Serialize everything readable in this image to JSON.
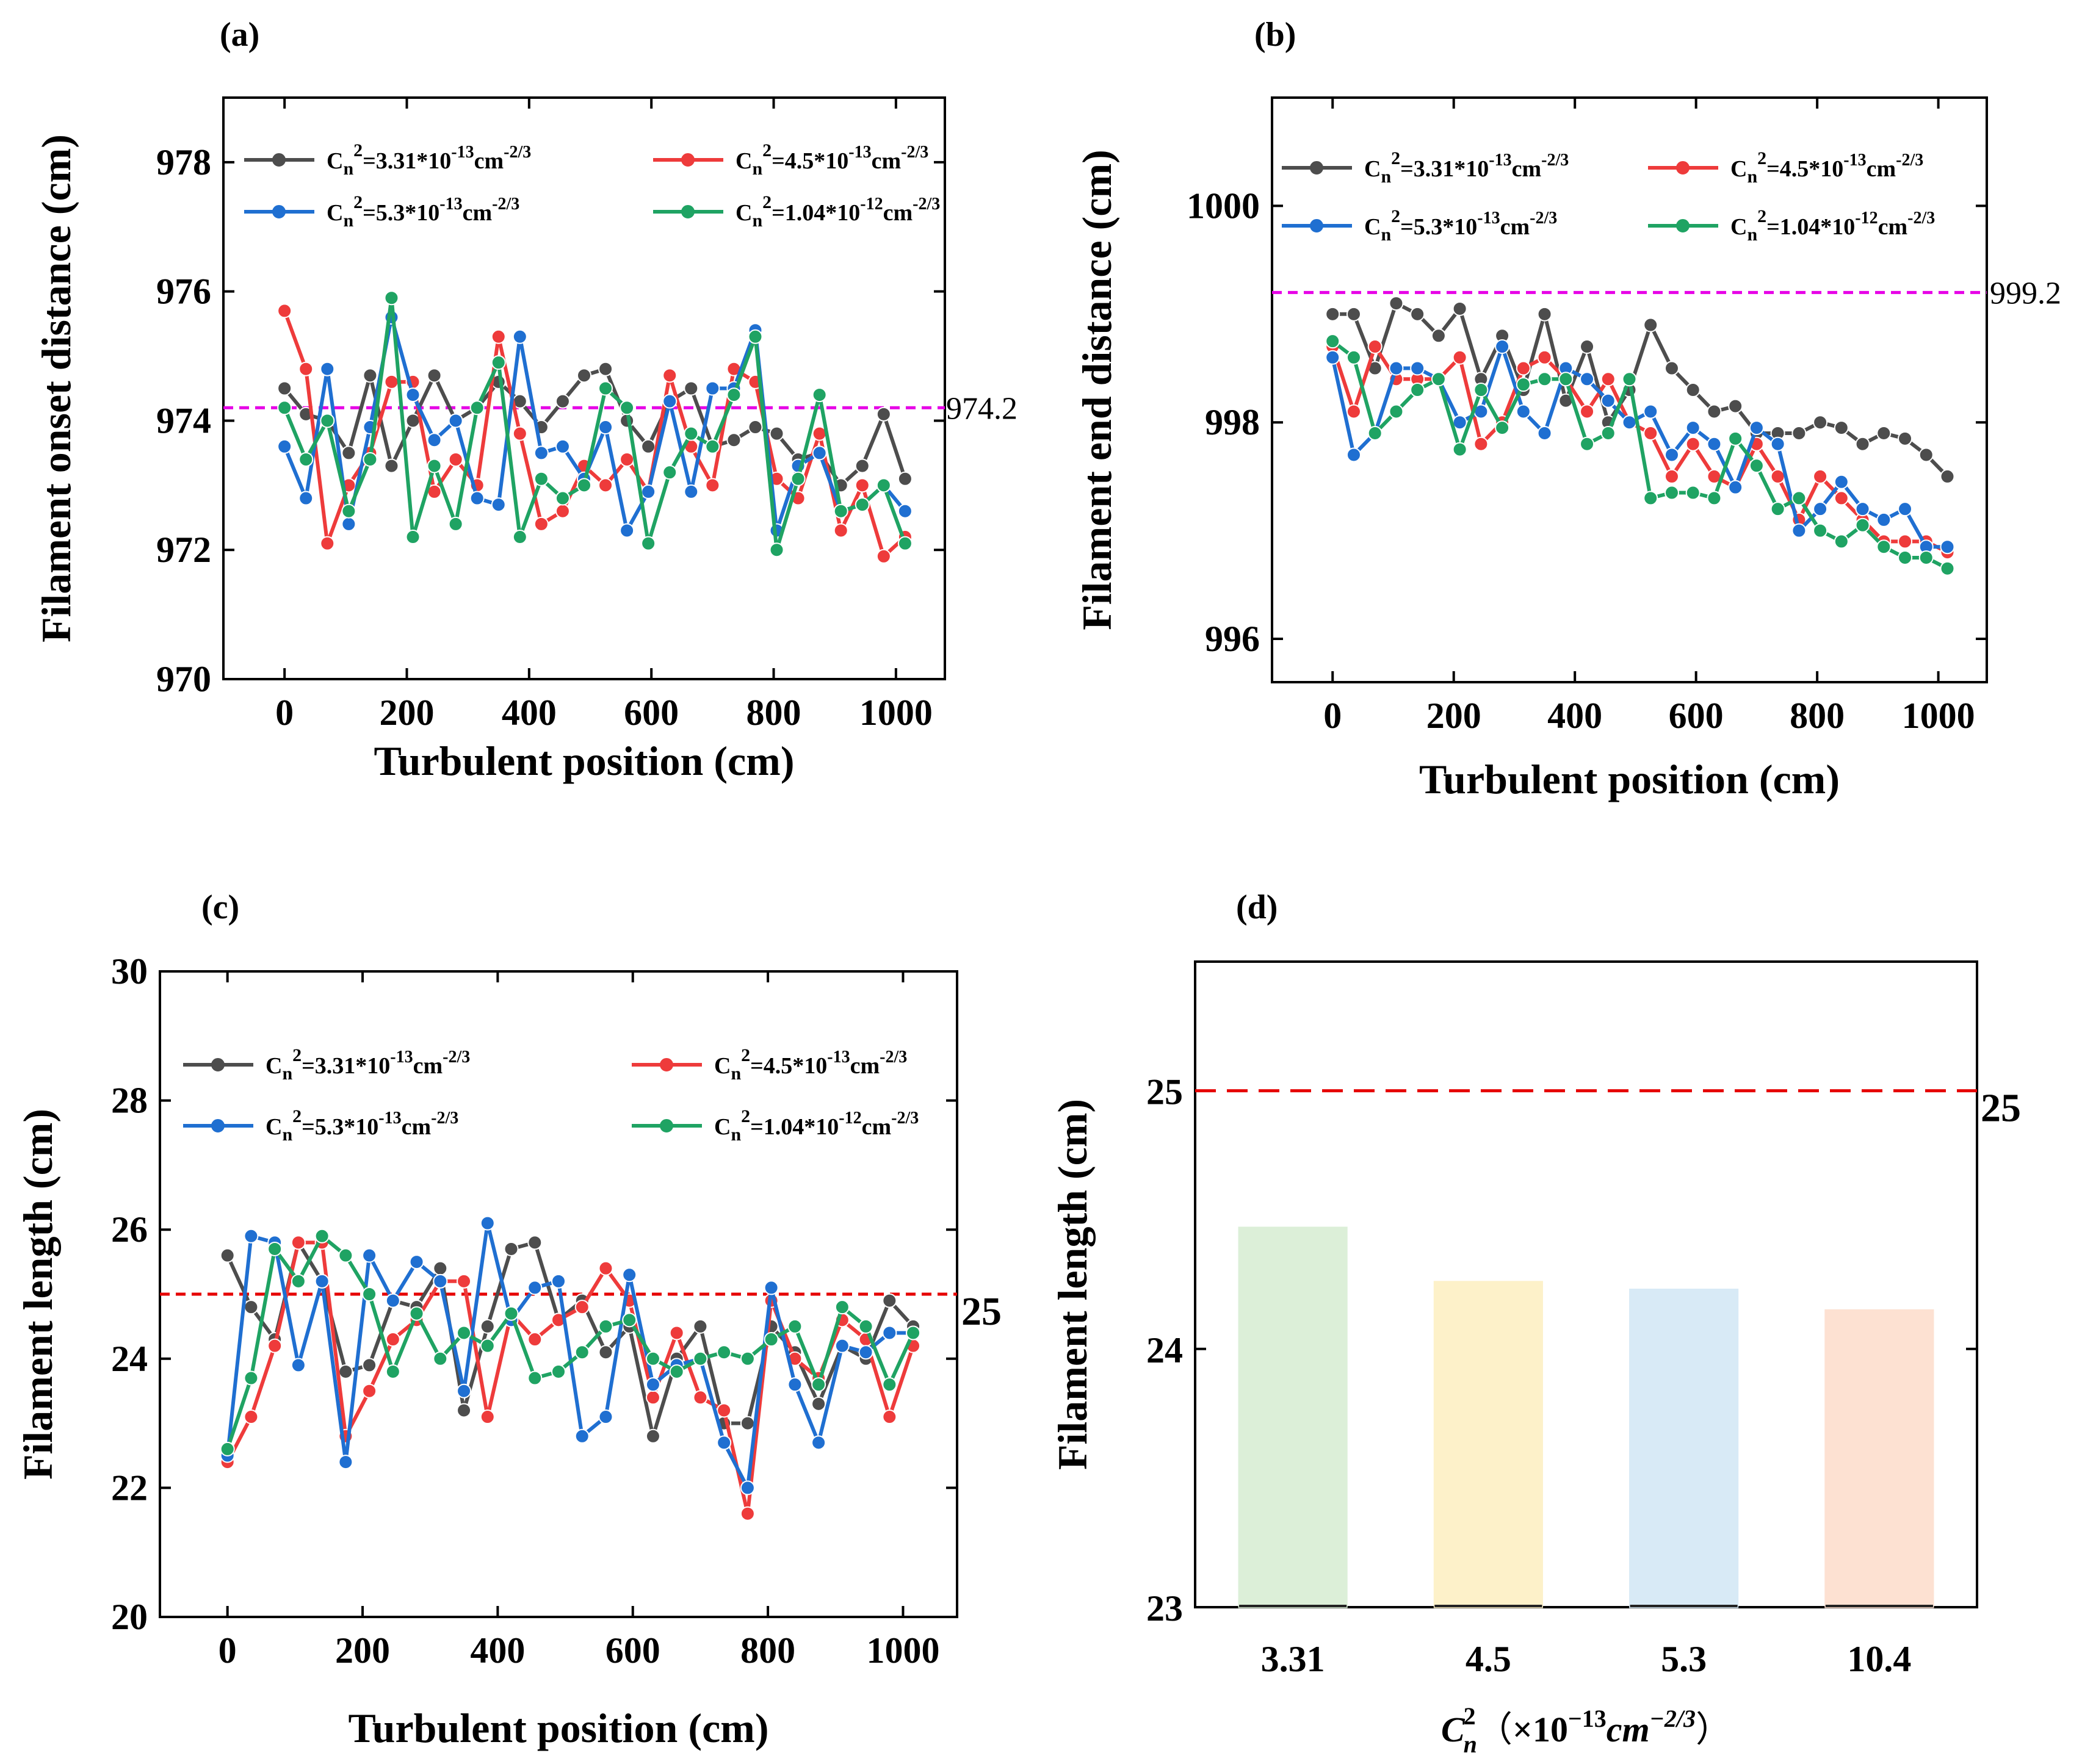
{
  "chart_data": [
    {
      "id": "a",
      "type": "line",
      "panel_label": "(a)",
      "xlabel": "Turbulent position (cm)",
      "ylabel": "Filament onset distance (cm)",
      "xlim": [
        -100,
        1080
      ],
      "ylim": [
        970,
        979
      ],
      "xticks": [
        "0",
        "200",
        "400",
        "600",
        "800",
        "1000"
      ],
      "yticks": [
        "970",
        "972",
        "974",
        "976",
        "978"
      ],
      "reference_line": {
        "value": 974.2,
        "label": "974.2",
        "color": "#e600e6"
      },
      "x": [
        0,
        35,
        70,
        105,
        140,
        175,
        210,
        245,
        280,
        315,
        350,
        385,
        420,
        455,
        490,
        525,
        560,
        595,
        630,
        665,
        700,
        735,
        770,
        805,
        840,
        875,
        910,
        945,
        980,
        1015
      ],
      "series": [
        {
          "name": "Cn2=3.31e-13",
          "color": "#4d4d4d",
          "legend_base": "C",
          "legend_sub": "n",
          "legend_sup": "2",
          "legend_mid": "=3.31*10",
          "legend_exp": "-13",
          "legend_unit": "cm",
          "legend_unit_exp": "-2/3",
          "values": [
            974.5,
            974.1,
            974.0,
            973.5,
            974.7,
            973.3,
            974.0,
            974.7,
            974.0,
            974.2,
            974.6,
            974.3,
            973.9,
            974.3,
            974.7,
            974.8,
            974.0,
            973.6,
            974.3,
            974.5,
            973.6,
            973.7,
            973.9,
            973.8,
            973.4,
            973.5,
            973.0,
            973.3,
            974.1,
            973.1
          ]
        },
        {
          "name": "Cn2=4.5e-13",
          "color": "#ee3b3b",
          "legend_base": "C",
          "legend_sub": "n",
          "legend_sup": "2",
          "legend_mid": "=4.5*10",
          "legend_exp": "-13",
          "legend_unit": "cm",
          "legend_unit_exp": "-2/3",
          "values": [
            975.7,
            974.8,
            972.1,
            973.0,
            973.5,
            974.6,
            974.6,
            972.9,
            973.4,
            973.0,
            975.3,
            973.8,
            972.4,
            972.6,
            973.3,
            973.0,
            973.4,
            972.9,
            974.7,
            973.6,
            973.0,
            974.8,
            974.6,
            973.1,
            972.8,
            973.8,
            972.3,
            973.0,
            971.9,
            972.2
          ]
        },
        {
          "name": "Cn2=5.3e-13",
          "color": "#1f6fd1",
          "legend_base": "C",
          "legend_sub": "n",
          "legend_sup": "2",
          "legend_mid": "=5.3*10",
          "legend_exp": "-13",
          "legend_unit": "cm",
          "legend_unit_exp": "-2/3",
          "values": [
            973.6,
            972.8,
            974.8,
            972.4,
            973.9,
            975.6,
            974.4,
            973.7,
            974.0,
            972.8,
            972.7,
            975.3,
            973.5,
            973.6,
            973.1,
            973.9,
            972.3,
            972.9,
            974.3,
            972.9,
            974.5,
            974.5,
            975.4,
            972.3,
            973.3,
            973.5,
            972.6,
            972.7,
            973.0,
            972.6
          ]
        },
        {
          "name": "Cn2=1.04e-12",
          "color": "#1fa363",
          "legend_base": "C",
          "legend_sub": "n",
          "legend_sup": "2",
          "legend_mid": "=1.04*10",
          "legend_exp": "-12",
          "legend_unit": "cm",
          "legend_unit_exp": "-2/3",
          "values": [
            974.2,
            973.4,
            974.0,
            972.6,
            973.4,
            975.9,
            972.2,
            973.3,
            972.4,
            974.2,
            974.9,
            972.2,
            973.1,
            972.8,
            973.0,
            974.5,
            974.2,
            972.1,
            973.2,
            973.8,
            973.6,
            974.4,
            975.3,
            972.0,
            973.1,
            974.4,
            972.6,
            972.7,
            973.0,
            972.1
          ]
        }
      ]
    },
    {
      "id": "b",
      "type": "line",
      "panel_label": "(b)",
      "xlabel": "Turbulent position (cm)",
      "ylabel": "Filament end distance (cm)",
      "xlim": [
        -100,
        1080
      ],
      "ylim": [
        995.6,
        1001.0
      ],
      "xticks": [
        "0",
        "200",
        "400",
        "600",
        "800",
        "1000"
      ],
      "yticks": [
        "996",
        "998",
        "1000"
      ],
      "reference_line": {
        "value": 999.2,
        "label": "999.2",
        "color": "#e600e6"
      },
      "x": [
        0,
        35,
        70,
        105,
        140,
        175,
        210,
        245,
        280,
        315,
        350,
        385,
        420,
        455,
        490,
        525,
        560,
        595,
        630,
        665,
        700,
        735,
        770,
        805,
        840,
        875,
        910,
        945,
        980,
        1015
      ],
      "series": [
        {
          "name": "Cn2=3.31e-13",
          "color": "#4d4d4d",
          "legend_base": "C",
          "legend_sub": "n",
          "legend_sup": "2",
          "legend_mid": "=3.31*10",
          "legend_exp": "-13",
          "legend_unit": "cm",
          "legend_unit_exp": "-2/3",
          "values": [
            999.0,
            999.0,
            998.5,
            999.1,
            999.0,
            998.8,
            999.05,
            998.4,
            998.8,
            998.3,
            999.0,
            998.2,
            998.7,
            998.0,
            998.3,
            998.9,
            998.5,
            998.3,
            998.1,
            998.15,
            997.9,
            997.9,
            997.9,
            998.0,
            997.95,
            997.8,
            997.9,
            997.85,
            997.7,
            997.5
          ]
        },
        {
          "name": "Cn2=4.5e-13",
          "color": "#ee3b3b",
          "legend_base": "C",
          "legend_sub": "n",
          "legend_sup": "2",
          "legend_mid": "=4.5*10",
          "legend_exp": "-13",
          "legend_unit": "cm",
          "legend_unit_exp": "-2/3",
          "values": [
            998.7,
            998.1,
            998.7,
            998.4,
            998.4,
            998.4,
            998.6,
            997.8,
            998.0,
            998.5,
            998.6,
            998.4,
            998.1,
            998.4,
            998.0,
            997.9,
            997.5,
            997.8,
            997.5,
            997.4,
            997.8,
            997.5,
            997.1,
            997.5,
            997.3,
            997.1,
            996.9,
            996.9,
            996.9,
            996.8
          ]
        },
        {
          "name": "Cn2=5.3e-13",
          "color": "#1f6fd1",
          "legend_base": "C",
          "legend_sub": "n",
          "legend_sup": "2",
          "legend_mid": "=5.3*10",
          "legend_exp": "-13",
          "legend_unit": "cm",
          "legend_unit_exp": "-2/3",
          "values": [
            998.6,
            997.7,
            997.9,
            998.5,
            998.5,
            998.4,
            998.0,
            998.1,
            998.7,
            998.1,
            997.9,
            998.5,
            998.4,
            998.2,
            998.0,
            998.1,
            997.7,
            997.95,
            997.8,
            997.4,
            997.95,
            997.8,
            997.0,
            997.2,
            997.45,
            997.2,
            997.1,
            997.2,
            996.85,
            996.85
          ]
        },
        {
          "name": "Cn2=1.04e-12",
          "color": "#1fa363",
          "legend_base": "C",
          "legend_sub": "n",
          "legend_sup": "2",
          "legend_mid": "=1.04*10",
          "legend_exp": "-12",
          "legend_unit": "cm",
          "legend_unit_exp": "-2/3",
          "values": [
            998.75,
            998.6,
            997.9,
            998.1,
            998.3,
            998.4,
            997.75,
            998.3,
            997.95,
            998.35,
            998.4,
            998.4,
            997.8,
            997.9,
            998.4,
            997.3,
            997.35,
            997.35,
            997.3,
            997.85,
            997.6,
            997.2,
            997.3,
            997.0,
            996.9,
            997.05,
            996.85,
            996.75,
            996.75,
            996.65
          ]
        }
      ]
    },
    {
      "id": "c",
      "type": "line",
      "panel_label": "(c)",
      "xlabel": "Turbulent position (cm)",
      "ylabel": "Filament length (cm)",
      "xlim": [
        -100,
        1080
      ],
      "ylim": [
        20,
        30
      ],
      "xticks": [
        "0",
        "200",
        "400",
        "600",
        "800",
        "1000"
      ],
      "yticks": [
        "20",
        "22",
        "24",
        "26",
        "28",
        "30"
      ],
      "reference_line": {
        "value": 25,
        "label": "25",
        "color": "#e60000"
      },
      "x": [
        0,
        35,
        70,
        105,
        140,
        175,
        210,
        245,
        280,
        315,
        350,
        385,
        420,
        455,
        490,
        525,
        560,
        595,
        630,
        665,
        700,
        735,
        770,
        805,
        840,
        875,
        910,
        945,
        980,
        1015
      ],
      "series": [
        {
          "name": "Cn2=3.31e-13",
          "color": "#4d4d4d",
          "legend_base": "C",
          "legend_sub": "n",
          "legend_sup": "2",
          "legend_mid": "=3.31*10",
          "legend_exp": "-13",
          "legend_unit": "cm",
          "legend_unit_exp": "-2/3",
          "values": [
            25.6,
            24.8,
            24.3,
            25.8,
            25.2,
            23.8,
            23.9,
            24.9,
            24.8,
            25.4,
            23.2,
            24.5,
            25.7,
            25.8,
            24.6,
            24.9,
            24.1,
            24.5,
            22.8,
            24.0,
            24.5,
            23.0,
            23.0,
            24.5,
            24.1,
            23.3,
            24.2,
            24.0,
            24.9,
            24.5
          ]
        },
        {
          "name": "Cn2=4.5e-13",
          "color": "#ee3b3b",
          "legend_base": "C",
          "legend_sub": "n",
          "legend_sup": "2",
          "legend_mid": "=4.5*10",
          "legend_exp": "-13",
          "legend_unit": "cm",
          "legend_unit_exp": "-2/3",
          "values": [
            22.4,
            23.1,
            24.2,
            25.8,
            25.8,
            22.8,
            23.5,
            24.3,
            24.6,
            25.2,
            25.2,
            23.1,
            24.7,
            24.3,
            24.6,
            24.8,
            25.4,
            24.9,
            23.4,
            24.4,
            23.4,
            23.2,
            21.6,
            24.9,
            24.0,
            23.7,
            24.6,
            24.3,
            23.1,
            24.2
          ]
        },
        {
          "name": "Cn2=5.3e-13",
          "color": "#1f6fd1",
          "legend_base": "C",
          "legend_sub": "n",
          "legend_sup": "2",
          "legend_mid": "=5.3*10",
          "legend_exp": "-13",
          "legend_unit": "cm",
          "legend_unit_exp": "-2/3",
          "values": [
            22.5,
            25.9,
            25.8,
            23.9,
            25.2,
            22.4,
            25.6,
            24.9,
            25.5,
            25.2,
            23.5,
            26.1,
            24.6,
            25.1,
            25.2,
            22.8,
            23.1,
            25.3,
            23.6,
            23.9,
            24.0,
            22.7,
            22.0,
            25.1,
            23.6,
            22.7,
            24.2,
            24.1,
            24.4,
            24.4
          ]
        },
        {
          "name": "Cn2=1.04e-12",
          "color": "#1fa363",
          "legend_base": "C",
          "legend_sub": "n",
          "legend_sup": "2",
          "legend_mid": "=1.04*10",
          "legend_exp": "-12",
          "legend_unit": "cm",
          "legend_unit_exp": "-2/3",
          "values": [
            22.6,
            23.7,
            25.7,
            25.2,
            25.9,
            25.6,
            25.0,
            23.8,
            24.7,
            24.0,
            24.4,
            24.2,
            24.7,
            23.7,
            23.8,
            24.1,
            24.5,
            24.6,
            24.0,
            23.8,
            24.0,
            24.1,
            24.0,
            24.3,
            24.5,
            23.6,
            24.8,
            24.5,
            23.6,
            24.4
          ]
        }
      ]
    },
    {
      "id": "d",
      "type": "bar",
      "panel_label": "(d)",
      "ylabel": "Filament length (cm)",
      "xlabel_base": "C",
      "xlabel_sub": "n",
      "xlabel_sup": "2",
      "xlabel_paren_open": "（",
      "xlabel_times": "×",
      "xlabel_ten": "10",
      "xlabel_exp": "−13",
      "xlabel_unit": "cm",
      "xlabel_unit_exp": "−2/3",
      "xlabel_paren_close": "）",
      "categories": [
        "3.31",
        "4.5",
        "5.3",
        "10.4"
      ],
      "values": [
        24.47,
        24.26,
        24.23,
        24.15
      ],
      "colors": [
        "#dcefd8",
        "#fdf1c9",
        "#d8eaf6",
        "#fde1d2"
      ],
      "ylim": [
        23,
        25.5
      ],
      "yticks": [
        "23",
        "24",
        "25"
      ],
      "reference_line": {
        "value": 25,
        "label": "25",
        "color": "#e60000"
      }
    }
  ]
}
